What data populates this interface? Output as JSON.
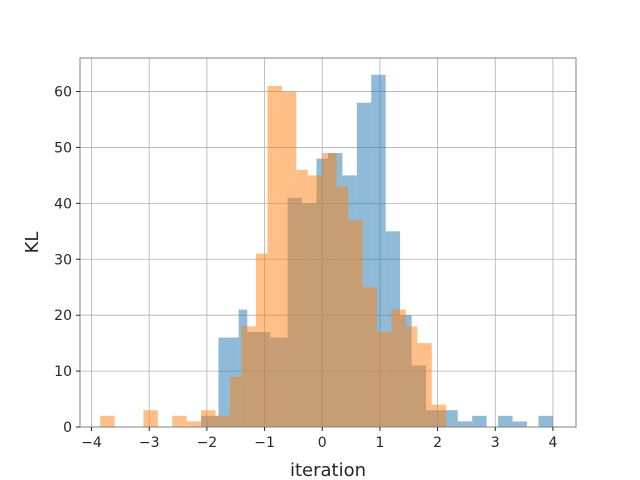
{
  "chart_data": {
    "type": "histogram",
    "xlabel": "iteration",
    "ylabel": "KL",
    "xlim": [
      -4.2,
      4.4
    ],
    "ylim": [
      0,
      66
    ],
    "xticks": [
      -4,
      -3,
      -2,
      -1,
      0,
      1,
      2,
      3,
      4
    ],
    "yticks": [
      0,
      10,
      20,
      30,
      40,
      50,
      60
    ],
    "grid": true,
    "colors": {
      "series_a": "#1f77b4",
      "series_b": "#ff7f0e"
    },
    "opacity": 0.5,
    "series": [
      {
        "bin_edges": [
          -2.2,
          -1.85,
          -1.5,
          -1.15,
          -0.8,
          -0.45,
          -0.1,
          0.25,
          0.6,
          0.95,
          1.3,
          1.65,
          2.0,
          2.35,
          2.7,
          3.05,
          3.4,
          3.75,
          4.1
        ],
        "counts": [
          2,
          16,
          21,
          16,
          41,
          48,
          45,
          63,
          35,
          18,
          0,
          3,
          1,
          2,
          2,
          1,
          0,
          2
        ],
        "bins": [
          {
            "x0": -2.1,
            "x1": -1.8,
            "count": 2
          },
          {
            "x0": -1.8,
            "x1": -1.45,
            "count": 16
          },
          {
            "x0": -1.45,
            "x1": -1.3,
            "count": 21
          },
          {
            "x0": -1.3,
            "x1": -0.9,
            "count": 17
          },
          {
            "x0": -0.9,
            "x1": -0.6,
            "count": 16
          },
          {
            "x0": -0.6,
            "x1": -0.35,
            "count": 41
          },
          {
            "x0": -0.35,
            "x1": -0.1,
            "count": 40
          },
          {
            "x0": -0.1,
            "x1": 0.1,
            "count": 48
          },
          {
            "x0": 0.1,
            "x1": 0.35,
            "count": 49
          },
          {
            "x0": 0.35,
            "x1": 0.6,
            "count": 45
          },
          {
            "x0": 0.6,
            "x1": 0.85,
            "count": 58
          },
          {
            "x0": 0.85,
            "x1": 1.1,
            "count": 63
          },
          {
            "x0": 1.1,
            "x1": 1.35,
            "count": 35
          },
          {
            "x0": 1.35,
            "x1": 1.55,
            "count": 20
          },
          {
            "x0": 1.55,
            "x1": 1.8,
            "count": 11
          },
          {
            "x0": 1.8,
            "x1": 2.1,
            "count": 3
          },
          {
            "x0": 2.1,
            "x1": 2.35,
            "count": 3
          },
          {
            "x0": 2.35,
            "x1": 2.6,
            "count": 1
          },
          {
            "x0": 2.6,
            "x1": 2.85,
            "count": 2
          },
          {
            "x0": 3.05,
            "x1": 3.3,
            "count": 2
          },
          {
            "x0": 3.3,
            "x1": 3.55,
            "count": 1
          },
          {
            "x0": 3.75,
            "x1": 4.0,
            "count": 2
          }
        ]
      },
      {
        "bins": [
          {
            "x0": -3.85,
            "x1": -3.6,
            "count": 2
          },
          {
            "x0": -3.1,
            "x1": -2.85,
            "count": 3
          },
          {
            "x0": -2.6,
            "x1": -2.35,
            "count": 2
          },
          {
            "x0": -2.35,
            "x1": -2.1,
            "count": 1
          },
          {
            "x0": -2.1,
            "x1": -1.85,
            "count": 3
          },
          {
            "x0": -1.85,
            "x1": -1.6,
            "count": 2
          },
          {
            "x0": -1.6,
            "x1": -1.4,
            "count": 9
          },
          {
            "x0": -1.4,
            "x1": -1.15,
            "count": 18
          },
          {
            "x0": -1.15,
            "x1": -0.95,
            "count": 31
          },
          {
            "x0": -0.95,
            "x1": -0.7,
            "count": 61
          },
          {
            "x0": -0.7,
            "x1": -0.45,
            "count": 60
          },
          {
            "x0": -0.45,
            "x1": -0.25,
            "count": 46
          },
          {
            "x0": -0.25,
            "x1": 0.0,
            "count": 45
          },
          {
            "x0": 0.0,
            "x1": 0.25,
            "count": 49
          },
          {
            "x0": 0.25,
            "x1": 0.45,
            "count": 43
          },
          {
            "x0": 0.45,
            "x1": 0.7,
            "count": 37
          },
          {
            "x0": 0.7,
            "x1": 0.95,
            "count": 25
          },
          {
            "x0": 0.95,
            "x1": 1.2,
            "count": 17
          },
          {
            "x0": 1.2,
            "x1": 1.45,
            "count": 21
          },
          {
            "x0": 1.45,
            "x1": 1.65,
            "count": 18
          },
          {
            "x0": 1.65,
            "x1": 1.9,
            "count": 15
          },
          {
            "x0": 1.9,
            "x1": 2.15,
            "count": 4
          }
        ]
      }
    ]
  }
}
